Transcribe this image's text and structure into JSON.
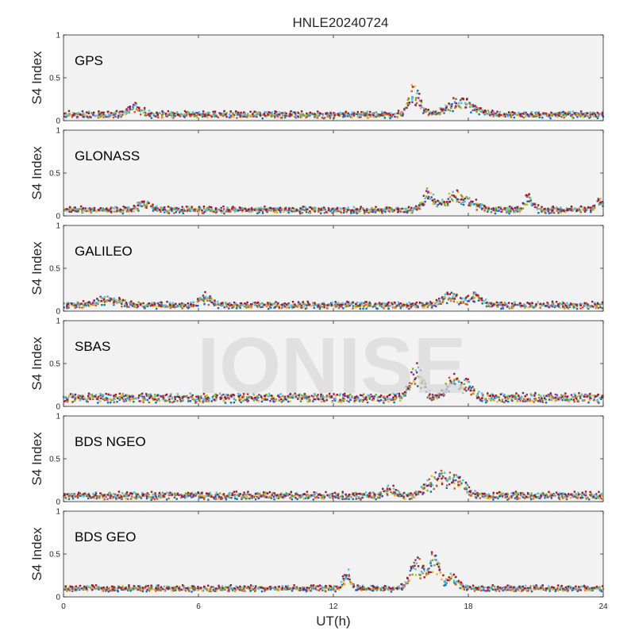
{
  "chart_data": {
    "type": "scatter",
    "title": "HNLE20240724",
    "xlabel": "UT(h)",
    "xlim": [
      0,
      24
    ],
    "xticks": [
      "0",
      "6",
      "12",
      "18",
      "24"
    ],
    "ylabel": "S4 Index",
    "ylim": [
      0,
      1
    ],
    "yticks": [
      "0",
      "0.5",
      "1"
    ],
    "watermark": "IONISE",
    "grid": false,
    "legend": "none",
    "series_colors": [
      "#0072BD",
      "#D95319",
      "#EDB120",
      "#7E2F8E",
      "#77AC30",
      "#4DBEEE",
      "#A2142F"
    ],
    "panels": [
      {
        "label": "GPS",
        "baseline": 0.07,
        "noise": 0.025,
        "events": [
          {
            "t": 15.6,
            "peak": 0.45,
            "width": 0.5
          },
          {
            "t": 17.7,
            "peak": 0.27,
            "width": 1.2
          },
          {
            "t": 3.2,
            "peak": 0.2,
            "width": 0.6
          }
        ]
      },
      {
        "label": "GLONASS",
        "baseline": 0.07,
        "noise": 0.025,
        "events": [
          {
            "t": 16.2,
            "peak": 0.32,
            "width": 0.4
          },
          {
            "t": 17.5,
            "peak": 0.3,
            "width": 1.3
          },
          {
            "t": 20.7,
            "peak": 0.27,
            "width": 0.4
          },
          {
            "t": 3.6,
            "peak": 0.2,
            "width": 0.5
          },
          {
            "t": 23.8,
            "peak": 0.2,
            "width": 0.4
          }
        ]
      },
      {
        "label": "GALILEO",
        "baseline": 0.07,
        "noise": 0.025,
        "events": [
          {
            "t": 17.2,
            "peak": 0.23,
            "width": 0.8
          },
          {
            "t": 18.3,
            "peak": 0.22,
            "width": 0.6
          },
          {
            "t": 6.3,
            "peak": 0.2,
            "width": 0.5
          },
          {
            "t": 2.0,
            "peak": 0.17,
            "width": 1.2
          }
        ]
      },
      {
        "label": "SBAS",
        "baseline": 0.1,
        "noise": 0.04,
        "events": [
          {
            "t": 15.7,
            "peak": 0.5,
            "width": 0.6
          },
          {
            "t": 17.3,
            "peak": 0.38,
            "width": 0.6
          },
          {
            "t": 18.0,
            "peak": 0.3,
            "width": 0.5
          }
        ]
      },
      {
        "label": "BDS NGEO",
        "baseline": 0.07,
        "noise": 0.03,
        "events": [
          {
            "t": 16.6,
            "peak": 0.35,
            "width": 0.9
          },
          {
            "t": 17.5,
            "peak": 0.3,
            "width": 0.8
          },
          {
            "t": 14.5,
            "peak": 0.18,
            "width": 0.5
          }
        ]
      },
      {
        "label": "BDS GEO",
        "baseline": 0.1,
        "noise": 0.02,
        "events": [
          {
            "t": 12.6,
            "peak": 0.35,
            "width": 0.3
          },
          {
            "t": 15.7,
            "peak": 0.5,
            "width": 0.6
          },
          {
            "t": 16.5,
            "peak": 0.55,
            "width": 0.5
          },
          {
            "t": 17.3,
            "peak": 0.28,
            "width": 0.5
          }
        ]
      }
    ]
  }
}
